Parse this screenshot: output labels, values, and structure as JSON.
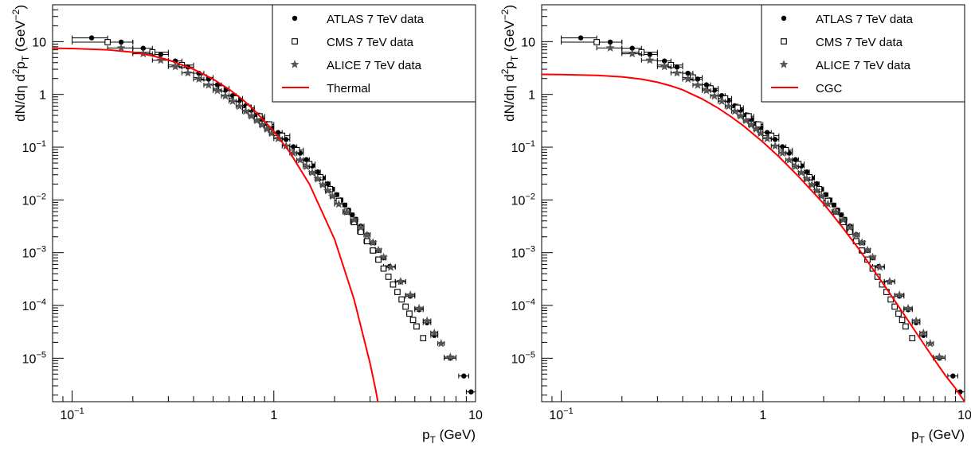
{
  "chart_data": [
    {
      "type": "scatter",
      "xlabel_main": "p",
      "xlabel_sub": "T",
      "xlabel_unit": " (GeV)",
      "ylabel_parts": [
        "dN/dη d",
        "2",
        "p",
        "T",
        " (GeV",
        "−2",
        ")"
      ],
      "x_scale": "log",
      "y_scale": "log",
      "xlim": [
        0.08,
        10
      ],
      "ylim": [
        1.5e-06,
        50
      ],
      "x_ticks": [
        {
          "v": 0.1,
          "b": "10",
          "e": "−1"
        },
        {
          "v": 1,
          "b": "1",
          "e": ""
        },
        {
          "v": 10,
          "b": "10",
          "e": ""
        }
      ],
      "y_ticks": [
        {
          "v": 10,
          "b": "10",
          "e": ""
        },
        {
          "v": 1,
          "b": "1",
          "e": ""
        },
        {
          "v": 0.1,
          "b": "10",
          "e": "−1"
        },
        {
          "v": 0.01,
          "b": "10",
          "e": "−2"
        },
        {
          "v": 0.001,
          "b": "10",
          "e": "−3"
        },
        {
          "v": 0.0001,
          "b": "10",
          "e": "−4"
        },
        {
          "v": 1e-05,
          "b": "10",
          "e": "−5"
        }
      ],
      "legend_position": "top-right",
      "legend": [
        "ATLAS 7 TeV data",
        "CMS 7 TeV data",
        "ALICE 7 TeV data",
        "Thermal"
      ],
      "series": [
        {
          "name": "ATLAS 7 TeV data",
          "marker": "circle",
          "color": "#000000",
          "x": [
            0.125,
            0.175,
            0.225,
            0.275,
            0.325,
            0.375,
            0.425,
            0.475,
            0.525,
            0.575,
            0.625,
            0.675,
            0.725,
            0.775,
            0.825,
            0.875,
            0.925,
            0.975,
            1.05,
            1.15,
            1.25,
            1.35,
            1.45,
            1.55,
            1.65,
            1.75,
            1.85,
            1.95,
            2.05,
            2.15,
            2.25,
            2.35,
            2.45,
            2.55,
            2.7,
            2.9,
            3.1,
            3.3,
            3.5,
            3.75,
            4.25,
            4.75,
            5.25,
            5.75,
            6.25,
            7.5,
            8.75,
            9.5
          ],
          "y": [
            11.8,
            9.8,
            7.5,
            5.7,
            4.3,
            3.3,
            2.52,
            1.95,
            1.52,
            1.2,
            0.95,
            0.76,
            0.61,
            0.5,
            0.41,
            0.335,
            0.28,
            0.233,
            0.19,
            0.14,
            0.102,
            0.077,
            0.058,
            0.044,
            0.034,
            0.026,
            0.0203,
            0.016,
            0.0126,
            0.01,
            0.008,
            0.0064,
            0.0052,
            0.0043,
            0.0032,
            0.0022,
            0.00155,
            0.0011,
            0.0008,
            0.00055,
            0.00028,
            0.00015,
            8.3e-05,
            4.7e-05,
            2.7e-05,
            1e-05,
            4.6e-06,
            2.3e-06
          ],
          "xerr": [
            0.025,
            0.025,
            0.025,
            0.025,
            0.025,
            0.025,
            0.025,
            0.025,
            0.025,
            0.025,
            0.025,
            0.025,
            0.025,
            0.025,
            0.025,
            0.025,
            0.025,
            0.025,
            0.05,
            0.05,
            0.05,
            0.05,
            0.05,
            0.05,
            0.05,
            0.05,
            0.05,
            0.05,
            0.05,
            0.05,
            0.05,
            0.05,
            0.05,
            0.05,
            0.1,
            0.1,
            0.1,
            0.1,
            0.1,
            0.25,
            0.25,
            0.25,
            0.25,
            0.25,
            0.25,
            0.5,
            0.5,
            0.5
          ]
        },
        {
          "name": "CMS 7 TeV data",
          "marker": "square",
          "color": "#000000",
          "x": [
            0.15,
            0.25,
            0.35,
            0.45,
            0.55,
            0.65,
            0.75,
            0.85,
            0.95,
            1.1,
            1.3,
            1.5,
            1.7,
            1.9,
            2.1,
            2.3,
            2.5,
            2.7,
            2.9,
            3.1,
            3.3,
            3.5,
            3.7,
            3.9,
            4.1,
            4.3,
            4.5,
            4.7,
            4.9,
            5.1,
            5.5
          ],
          "y": [
            9.8,
            6.3,
            3.6,
            2.1,
            1.3,
            0.84,
            0.56,
            0.385,
            0.27,
            0.165,
            0.088,
            0.048,
            0.027,
            0.016,
            0.0096,
            0.006,
            0.0038,
            0.0025,
            0.00165,
            0.0011,
            0.00074,
            0.0005,
            0.00035,
            0.00025,
            0.00018,
            0.00013,
            9.5e-05,
            7e-05,
            5.3e-05,
            4e-05,
            2.4e-05
          ],
          "xerr": [
            0.05,
            0.05,
            0.05,
            0.05,
            0.05,
            0.05,
            0.05,
            0.05,
            0.05,
            0.1,
            0.1,
            0.1,
            0.1,
            0.1,
            0.1,
            0.1,
            0.1,
            0.1,
            0.1,
            0.1,
            0.1,
            0.1,
            0.1,
            0.1,
            0.1,
            0.1,
            0.1,
            0.1,
            0.1,
            0.1,
            0.1
          ]
        },
        {
          "name": "ALICE 7 TeV data",
          "marker": "star",
          "color": "#555555",
          "x": [
            0.175,
            0.225,
            0.275,
            0.325,
            0.375,
            0.425,
            0.475,
            0.525,
            0.575,
            0.625,
            0.675,
            0.725,
            0.775,
            0.825,
            0.875,
            0.925,
            0.975,
            1.05,
            1.15,
            1.25,
            1.35,
            1.45,
            1.55,
            1.65,
            1.75,
            1.85,
            1.95,
            2.1,
            2.3,
            2.5,
            2.7,
            2.9,
            3.1,
            3.3,
            3.5,
            3.8,
            4.25,
            4.75,
            5.25,
            5.75,
            6.25,
            6.75,
            7.5
          ],
          "y": [
            7.6,
            5.9,
            4.45,
            3.35,
            2.55,
            1.95,
            1.5,
            1.18,
            0.93,
            0.74,
            0.595,
            0.48,
            0.39,
            0.32,
            0.265,
            0.22,
            0.183,
            0.145,
            0.105,
            0.077,
            0.057,
            0.043,
            0.033,
            0.025,
            0.0194,
            0.015,
            0.0118,
            0.0083,
            0.0059,
            0.0042,
            0.003,
            0.00215,
            0.00155,
            0.00112,
            0.00082,
            0.00053,
            0.000285,
            0.000158,
            8.8e-05,
            5.1e-05,
            3e-05,
            1.9e-05,
            1.05e-05
          ],
          "xerr": [
            0.025,
            0.025,
            0.025,
            0.025,
            0.025,
            0.025,
            0.025,
            0.025,
            0.025,
            0.025,
            0.025,
            0.025,
            0.025,
            0.025,
            0.025,
            0.025,
            0.025,
            0.05,
            0.05,
            0.05,
            0.05,
            0.05,
            0.05,
            0.05,
            0.05,
            0.05,
            0.05,
            0.1,
            0.1,
            0.1,
            0.1,
            0.1,
            0.1,
            0.1,
            0.1,
            0.2,
            0.25,
            0.25,
            0.25,
            0.25,
            0.25,
            0.25,
            0.5
          ]
        },
        {
          "name": "Thermal",
          "type": "line",
          "color": "#ff0000",
          "x": [
            0.08,
            0.1,
            0.15,
            0.2,
            0.25,
            0.3,
            0.4,
            0.5,
            0.6,
            0.7,
            0.8,
            1.0,
            1.2,
            1.5,
            2.0,
            2.5,
            3.0,
            3.2,
            3.3
          ],
          "y": [
            7.5,
            7.4,
            7.0,
            6.3,
            5.4,
            4.5,
            3.0,
            1.95,
            1.25,
            0.8,
            0.5,
            0.2,
            0.08,
            0.02,
            0.0018,
            0.00013,
            8e-06,
            2.5e-06,
            1.3e-06
          ]
        }
      ]
    },
    {
      "type": "scatter",
      "xlabel_main": "p",
      "xlabel_sub": "T",
      "xlabel_unit": " (GeV)",
      "ylabel_parts": [
        "dN/dη d",
        "2",
        "p",
        "T",
        " (GeV",
        "−2",
        ")"
      ],
      "x_scale": "log",
      "y_scale": "log",
      "xlim": [
        0.08,
        10
      ],
      "ylim": [
        1.5e-06,
        50
      ],
      "x_ticks": [
        {
          "v": 0.1,
          "b": "10",
          "e": "−1"
        },
        {
          "v": 1,
          "b": "1",
          "e": ""
        },
        {
          "v": 10,
          "b": "10",
          "e": ""
        }
      ],
      "y_ticks": [
        {
          "v": 10,
          "b": "10",
          "e": ""
        },
        {
          "v": 1,
          "b": "1",
          "e": ""
        },
        {
          "v": 0.1,
          "b": "10",
          "e": "−1"
        },
        {
          "v": 0.01,
          "b": "10",
          "e": "−2"
        },
        {
          "v": 0.001,
          "b": "10",
          "e": "−3"
        },
        {
          "v": 0.0001,
          "b": "10",
          "e": "−4"
        },
        {
          "v": 1e-05,
          "b": "10",
          "e": "−5"
        }
      ],
      "legend_position": "top-right",
      "legend": [
        "ATLAS 7 TeV data",
        "CMS 7 TeV data",
        "ALICE 7 TeV data",
        "CGC"
      ],
      "series": [
        {
          "name": "ATLAS 7 TeV data",
          "marker": "circle",
          "color": "#000000",
          "x": [
            0.125,
            0.175,
            0.225,
            0.275,
            0.325,
            0.375,
            0.425,
            0.475,
            0.525,
            0.575,
            0.625,
            0.675,
            0.725,
            0.775,
            0.825,
            0.875,
            0.925,
            0.975,
            1.05,
            1.15,
            1.25,
            1.35,
            1.45,
            1.55,
            1.65,
            1.75,
            1.85,
            1.95,
            2.05,
            2.15,
            2.25,
            2.35,
            2.45,
            2.55,
            2.7,
            2.9,
            3.1,
            3.3,
            3.5,
            3.75,
            4.25,
            4.75,
            5.25,
            5.75,
            6.25,
            7.5,
            8.75,
            9.5
          ],
          "y": [
            11.8,
            9.8,
            7.5,
            5.7,
            4.3,
            3.3,
            2.52,
            1.95,
            1.52,
            1.2,
            0.95,
            0.76,
            0.61,
            0.5,
            0.41,
            0.335,
            0.28,
            0.233,
            0.19,
            0.14,
            0.102,
            0.077,
            0.058,
            0.044,
            0.034,
            0.026,
            0.0203,
            0.016,
            0.0126,
            0.01,
            0.008,
            0.0064,
            0.0052,
            0.0043,
            0.0032,
            0.0022,
            0.00155,
            0.0011,
            0.0008,
            0.00055,
            0.00028,
            0.00015,
            8.3e-05,
            4.7e-05,
            2.7e-05,
            1e-05,
            4.6e-06,
            2.3e-06
          ],
          "xerr": [
            0.025,
            0.025,
            0.025,
            0.025,
            0.025,
            0.025,
            0.025,
            0.025,
            0.025,
            0.025,
            0.025,
            0.025,
            0.025,
            0.025,
            0.025,
            0.025,
            0.025,
            0.025,
            0.05,
            0.05,
            0.05,
            0.05,
            0.05,
            0.05,
            0.05,
            0.05,
            0.05,
            0.05,
            0.05,
            0.05,
            0.05,
            0.05,
            0.05,
            0.05,
            0.1,
            0.1,
            0.1,
            0.1,
            0.1,
            0.25,
            0.25,
            0.25,
            0.25,
            0.25,
            0.25,
            0.5,
            0.5,
            0.5
          ]
        },
        {
          "name": "CMS 7 TeV data",
          "marker": "square",
          "color": "#000000",
          "x": [
            0.15,
            0.25,
            0.35,
            0.45,
            0.55,
            0.65,
            0.75,
            0.85,
            0.95,
            1.1,
            1.3,
            1.5,
            1.7,
            1.9,
            2.1,
            2.3,
            2.5,
            2.7,
            2.9,
            3.1,
            3.3,
            3.5,
            3.7,
            3.9,
            4.1,
            4.3,
            4.5,
            4.7,
            4.9,
            5.1,
            5.5
          ],
          "y": [
            9.8,
            6.3,
            3.6,
            2.1,
            1.3,
            0.84,
            0.56,
            0.385,
            0.27,
            0.165,
            0.088,
            0.048,
            0.027,
            0.016,
            0.0096,
            0.006,
            0.0038,
            0.0025,
            0.00165,
            0.0011,
            0.00074,
            0.0005,
            0.00035,
            0.00025,
            0.00018,
            0.00013,
            9.5e-05,
            7e-05,
            5.3e-05,
            4e-05,
            2.4e-05
          ],
          "xerr": [
            0.05,
            0.05,
            0.05,
            0.05,
            0.05,
            0.05,
            0.05,
            0.05,
            0.05,
            0.1,
            0.1,
            0.1,
            0.1,
            0.1,
            0.1,
            0.1,
            0.1,
            0.1,
            0.1,
            0.1,
            0.1,
            0.1,
            0.1,
            0.1,
            0.1,
            0.1,
            0.1,
            0.1,
            0.1,
            0.1,
            0.1
          ]
        },
        {
          "name": "ALICE 7 TeV data",
          "marker": "star",
          "color": "#555555",
          "x": [
            0.175,
            0.225,
            0.275,
            0.325,
            0.375,
            0.425,
            0.475,
            0.525,
            0.575,
            0.625,
            0.675,
            0.725,
            0.775,
            0.825,
            0.875,
            0.925,
            0.975,
            1.05,
            1.15,
            1.25,
            1.35,
            1.45,
            1.55,
            1.65,
            1.75,
            1.85,
            1.95,
            2.1,
            2.3,
            2.5,
            2.7,
            2.9,
            3.1,
            3.3,
            3.5,
            3.8,
            4.25,
            4.75,
            5.25,
            5.75,
            6.25,
            6.75,
            7.5
          ],
          "y": [
            7.6,
            5.9,
            4.45,
            3.35,
            2.55,
            1.95,
            1.5,
            1.18,
            0.93,
            0.74,
            0.595,
            0.48,
            0.39,
            0.32,
            0.265,
            0.22,
            0.183,
            0.145,
            0.105,
            0.077,
            0.057,
            0.043,
            0.033,
            0.025,
            0.0194,
            0.015,
            0.0118,
            0.0083,
            0.0059,
            0.0042,
            0.003,
            0.00215,
            0.00155,
            0.00112,
            0.00082,
            0.00053,
            0.000285,
            0.000158,
            8.8e-05,
            5.1e-05,
            3e-05,
            1.9e-05,
            1.05e-05
          ],
          "xerr": [
            0.025,
            0.025,
            0.025,
            0.025,
            0.025,
            0.025,
            0.025,
            0.025,
            0.025,
            0.025,
            0.025,
            0.025,
            0.025,
            0.025,
            0.025,
            0.025,
            0.025,
            0.05,
            0.05,
            0.05,
            0.05,
            0.05,
            0.05,
            0.05,
            0.05,
            0.05,
            0.05,
            0.1,
            0.1,
            0.1,
            0.1,
            0.1,
            0.1,
            0.1,
            0.1,
            0.2,
            0.25,
            0.25,
            0.25,
            0.25,
            0.25,
            0.25,
            0.5
          ]
        },
        {
          "name": "CGC",
          "type": "line",
          "color": "#ff0000",
          "x": [
            0.08,
            0.1,
            0.15,
            0.2,
            0.25,
            0.3,
            0.35,
            0.4,
            0.5,
            0.6,
            0.7,
            0.8,
            1.0,
            1.2,
            1.5,
            2.0,
            2.5,
            3.0,
            4.0,
            5.0,
            6.0,
            7.0,
            8.0,
            9.0,
            10.0
          ],
          "y": [
            2.4,
            2.38,
            2.3,
            2.15,
            1.95,
            1.7,
            1.45,
            1.22,
            0.82,
            0.55,
            0.37,
            0.255,
            0.125,
            0.066,
            0.028,
            0.0085,
            0.0029,
            0.00115,
            0.00024,
            6.8e-05,
            2.4e-05,
            1e-05,
            4.8e-06,
            2.7e-06,
            1.5e-06
          ]
        }
      ]
    }
  ]
}
